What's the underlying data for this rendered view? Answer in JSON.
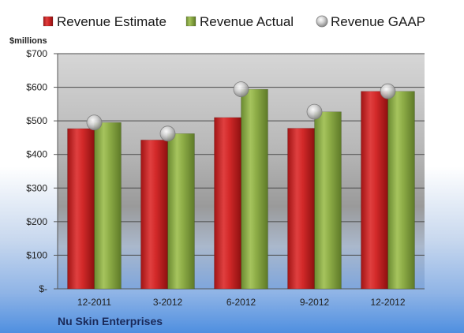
{
  "chart_data": {
    "type": "bar",
    "title": "",
    "company": "Nu Skin Enterprises",
    "y_unit_label": "$millions",
    "categories": [
      "12-2011",
      "3-2012",
      "6-2012",
      "9-2012",
      "12-2012"
    ],
    "series": [
      {
        "name": "Revenue Estimate",
        "type": "bar",
        "values": [
          477,
          443,
          510,
          478,
          588
        ],
        "color": "#d42a2a"
      },
      {
        "name": "Revenue Actual",
        "type": "bar",
        "values": [
          495,
          462,
          594,
          527,
          588
        ],
        "color": "#8fae48"
      },
      {
        "name": "Revenue GAAP",
        "type": "marker",
        "values": [
          495,
          462,
          594,
          527,
          588
        ],
        "color": "#c8c8c8"
      }
    ],
    "ylim": [
      0,
      700
    ],
    "y_ticks": [
      0,
      100,
      200,
      300,
      400,
      500,
      600,
      700
    ],
    "y_tick_labels": [
      "$-",
      "$100",
      "$200",
      "$300",
      "$400",
      "$500",
      "$600",
      "$700"
    ],
    "grid": true,
    "legend_position": "top"
  }
}
